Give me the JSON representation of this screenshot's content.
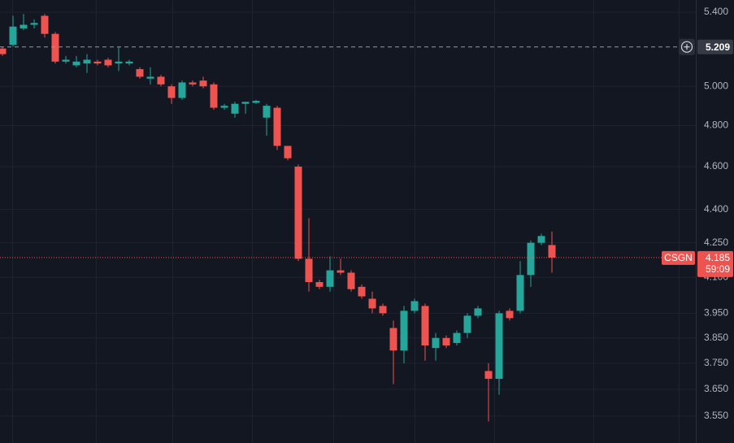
{
  "chart_data": {
    "type": "candlestick",
    "symbol": "CSGN",
    "countdown": "59:09",
    "log_scale": true,
    "grid": true,
    "up_color": "#26a69a",
    "down_color": "#ef5350",
    "ylim": [
      3.452,
      5.469
    ],
    "yticks": [
      {
        "value": 5.4,
        "label": "5.400"
      },
      {
        "value": 5.0,
        "label": "5.000"
      },
      {
        "value": 4.8,
        "label": "4.800"
      },
      {
        "value": 4.6,
        "label": "4.600"
      },
      {
        "value": 4.4,
        "label": "4.400"
      },
      {
        "value": 4.25,
        "label": "4.250"
      },
      {
        "value": 4.1,
        "label": "4.100"
      },
      {
        "value": 3.95,
        "label": "3.950"
      },
      {
        "value": 3.85,
        "label": "3.850"
      },
      {
        "value": 3.75,
        "label": "3.750"
      },
      {
        "value": 3.65,
        "label": "3.650"
      },
      {
        "value": 3.55,
        "label": "3.550"
      }
    ],
    "last_price": {
      "value": 4.185,
      "label": "4.185"
    },
    "crosshair": {
      "value": 5.209,
      "label": "5.209"
    },
    "open": [
      5.2,
      5.22,
      5.31,
      5.33,
      5.38,
      5.28,
      5.13,
      5.11,
      5.12,
      5.13,
      5.14,
      5.12,
      5.12,
      5.09,
      5.04,
      5.05,
      5.0,
      4.94,
      5.02,
      5.03,
      5.01,
      4.89,
      4.86,
      4.91,
      4.915,
      4.84,
      4.89,
      4.7,
      4.6,
      4.18,
      4.08,
      4.06,
      4.13,
      4.12,
      4.06,
      4.01,
      3.98,
      3.89,
      3.8,
      3.96,
      3.98,
      3.81,
      3.85,
      3.83,
      3.87,
      3.94,
      3.72,
      3.69,
      3.96,
      3.96,
      4.11,
      4.25,
      4.24
    ],
    "high": [
      5.21,
      5.38,
      5.39,
      5.36,
      5.39,
      5.29,
      5.16,
      5.16,
      5.17,
      5.14,
      5.15,
      5.21,
      5.14,
      5.1,
      5.1,
      5.06,
      5.01,
      5.03,
      5.03,
      5.05,
      5.02,
      4.91,
      4.92,
      4.92,
      4.93,
      4.91,
      4.9,
      4.7,
      4.61,
      4.36,
      4.09,
      4.19,
      4.18,
      4.13,
      4.07,
      4.04,
      3.99,
      3.92,
      3.98,
      4.01,
      3.99,
      3.87,
      3.86,
      3.88,
      3.95,
      3.98,
      3.75,
      3.96,
      3.97,
      4.17,
      4.26,
      4.29,
      4.3
    ],
    "low": [
      5.16,
      5.21,
      5.3,
      5.31,
      5.26,
      5.12,
      5.12,
      5.1,
      5.07,
      5.11,
      5.1,
      5.08,
      5.11,
      5.04,
      5.01,
      5.0,
      4.91,
      4.93,
      5.0,
      4.99,
      4.88,
      4.88,
      4.84,
      4.86,
      4.91,
      4.75,
      4.68,
      4.63,
      4.17,
      4.04,
      4.05,
      4.04,
      4.11,
      4.04,
      4.01,
      3.95,
      3.94,
      3.67,
      3.75,
      3.95,
      3.76,
      3.76,
      3.81,
      3.82,
      3.85,
      3.93,
      3.53,
      3.63,
      3.92,
      3.95,
      4.06,
      4.24,
      4.12
    ],
    "close": [
      5.17,
      5.32,
      5.33,
      5.34,
      5.28,
      5.13,
      5.14,
      5.13,
      5.14,
      5.12,
      5.11,
      5.13,
      5.13,
      5.05,
      5.05,
      5.01,
      4.94,
      5.02,
      5.01,
      5.0,
      4.89,
      4.9,
      4.91,
      4.92,
      4.925,
      4.9,
      4.7,
      4.64,
      4.18,
      4.08,
      4.06,
      4.13,
      4.12,
      4.05,
      4.02,
      3.97,
      3.95,
      3.8,
      3.96,
      4.0,
      3.82,
      3.85,
      3.82,
      3.87,
      3.94,
      3.97,
      3.69,
      3.95,
      3.93,
      4.11,
      4.25,
      4.28,
      4.185
    ]
  }
}
